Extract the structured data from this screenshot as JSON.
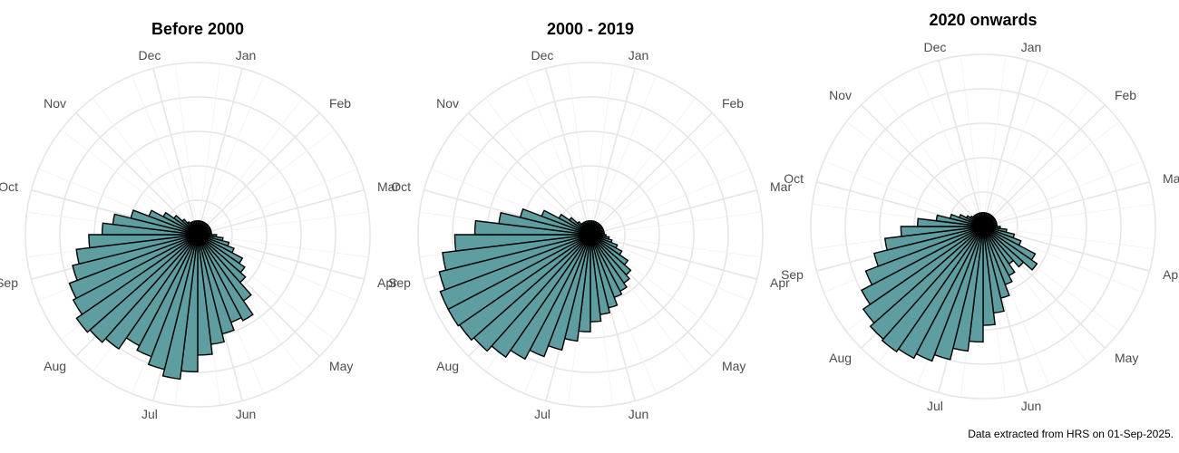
{
  "caption": "Data extracted from HRS on 01-Sep-2025.",
  "months": [
    "Jan",
    "Feb",
    "Mar",
    "Apr",
    "May",
    "Jun",
    "Jul",
    "Aug",
    "Sep",
    "Oct",
    "Nov",
    "Dec"
  ],
  "colors": {
    "bar_fill": "#5f9ea0",
    "bar_stroke": "#000000",
    "grid": "#e6e6e6"
  },
  "chart_data": [
    {
      "type": "bar",
      "polar": true,
      "title": "Before 2000",
      "x_unit": "week of year",
      "r_max": 1.0,
      "x": [
        1,
        2,
        3,
        4,
        5,
        6,
        7,
        8,
        9,
        10,
        11,
        12,
        13,
        14,
        15,
        16,
        17,
        18,
        19,
        20,
        21,
        22,
        23,
        24,
        25,
        26,
        27,
        28,
        29,
        30,
        31,
        32,
        33,
        34,
        35,
        36,
        37,
        38,
        39,
        40,
        41,
        42,
        43,
        44,
        45,
        46,
        47,
        48,
        49,
        50,
        51,
        52
      ],
      "values": [
        0.05,
        0.05,
        0.05,
        0.05,
        0.05,
        0.05,
        0.05,
        0.05,
        0.05,
        0.05,
        0.05,
        0.05,
        0.05,
        0.08,
        0.12,
        0.16,
        0.2,
        0.27,
        0.31,
        0.35,
        0.45,
        0.55,
        0.53,
        0.58,
        0.63,
        0.69,
        0.79,
        0.84,
        0.8,
        0.75,
        0.72,
        0.8,
        0.83,
        0.85,
        0.81,
        0.79,
        0.74,
        0.7,
        0.62,
        0.54,
        0.48,
        0.38,
        0.28,
        0.2,
        0.14,
        0.09,
        0.06,
        0.05,
        0.05,
        0.05,
        0.05,
        0.05
      ]
    },
    {
      "type": "bar",
      "polar": true,
      "title": "2000 - 2019",
      "x_unit": "week of year",
      "r_max": 1.0,
      "x": [
        1,
        2,
        3,
        4,
        5,
        6,
        7,
        8,
        9,
        10,
        11,
        12,
        13,
        14,
        15,
        16,
        17,
        18,
        19,
        20,
        21,
        22,
        23,
        24,
        25,
        26,
        27,
        28,
        29,
        30,
        31,
        32,
        33,
        34,
        35,
        36,
        37,
        38,
        39,
        40,
        41,
        42,
        43,
        44,
        45,
        46,
        47,
        48,
        49,
        50,
        51,
        52
      ],
      "values": [
        0.05,
        0.05,
        0.05,
        0.05,
        0.05,
        0.05,
        0.05,
        0.05,
        0.05,
        0.05,
        0.05,
        0.05,
        0.05,
        0.06,
        0.08,
        0.1,
        0.14,
        0.18,
        0.24,
        0.29,
        0.32,
        0.35,
        0.37,
        0.42,
        0.45,
        0.49,
        0.55,
        0.61,
        0.68,
        0.75,
        0.81,
        0.86,
        0.9,
        0.92,
        0.93,
        0.93,
        0.9,
        0.86,
        0.78,
        0.66,
        0.52,
        0.4,
        0.28,
        0.18,
        0.12,
        0.07,
        0.05,
        0.05,
        0.05,
        0.05,
        0.05,
        0.05
      ]
    },
    {
      "type": "bar",
      "polar": true,
      "title": "2020 onwards",
      "x_unit": "week of year",
      "r_max": 1.0,
      "x": [
        1,
        2,
        3,
        4,
        5,
        6,
        7,
        8,
        9,
        10,
        11,
        12,
        13,
        14,
        15,
        16,
        17,
        18,
        19,
        20,
        21,
        22,
        23,
        24,
        25,
        26,
        27,
        28,
        29,
        30,
        31,
        32,
        33,
        34,
        35,
        36,
        37,
        38,
        39,
        40,
        41,
        42,
        43,
        44,
        45,
        46,
        47,
        48,
        49,
        50,
        51,
        52
      ],
      "values": [
        0.05,
        0.05,
        0.05,
        0.05,
        0.05,
        0.05,
        0.05,
        0.05,
        0.05,
        0.05,
        0.05,
        0.05,
        0.05,
        0.07,
        0.11,
        0.16,
        0.21,
        0.32,
        0.36,
        0.29,
        0.24,
        0.3,
        0.34,
        0.41,
        0.49,
        0.56,
        0.66,
        0.72,
        0.79,
        0.83,
        0.86,
        0.88,
        0.87,
        0.84,
        0.79,
        0.72,
        0.64,
        0.56,
        0.46,
        0.36,
        0.25,
        0.17,
        0.12,
        0.08,
        0.06,
        0.05,
        0.05,
        0.05,
        0.05,
        0.05,
        0.05,
        0.05
      ]
    }
  ]
}
